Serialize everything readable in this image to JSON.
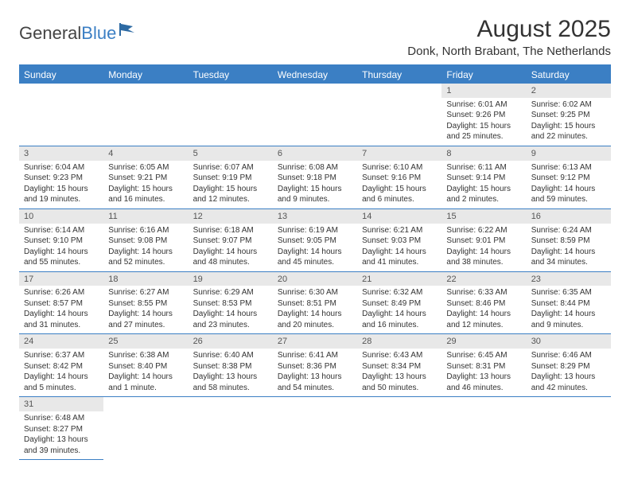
{
  "logo": {
    "part1": "General",
    "part2": "Blue"
  },
  "title": "August 2025",
  "location": "Donk, North Brabant, The Netherlands",
  "colors": {
    "header_bg": "#3b7fc4",
    "header_text": "#ffffff",
    "daynum_bg": "#e8e8e8",
    "text": "#333333",
    "border": "#3b7fc4"
  },
  "weekdays": [
    "Sunday",
    "Monday",
    "Tuesday",
    "Wednesday",
    "Thursday",
    "Friday",
    "Saturday"
  ],
  "weeks": [
    [
      null,
      null,
      null,
      null,
      null,
      {
        "n": "1",
        "sr": "Sunrise: 6:01 AM",
        "ss": "Sunset: 9:26 PM",
        "d1": "Daylight: 15 hours",
        "d2": "and 25 minutes."
      },
      {
        "n": "2",
        "sr": "Sunrise: 6:02 AM",
        "ss": "Sunset: 9:25 PM",
        "d1": "Daylight: 15 hours",
        "d2": "and 22 minutes."
      }
    ],
    [
      {
        "n": "3",
        "sr": "Sunrise: 6:04 AM",
        "ss": "Sunset: 9:23 PM",
        "d1": "Daylight: 15 hours",
        "d2": "and 19 minutes."
      },
      {
        "n": "4",
        "sr": "Sunrise: 6:05 AM",
        "ss": "Sunset: 9:21 PM",
        "d1": "Daylight: 15 hours",
        "d2": "and 16 minutes."
      },
      {
        "n": "5",
        "sr": "Sunrise: 6:07 AM",
        "ss": "Sunset: 9:19 PM",
        "d1": "Daylight: 15 hours",
        "d2": "and 12 minutes."
      },
      {
        "n": "6",
        "sr": "Sunrise: 6:08 AM",
        "ss": "Sunset: 9:18 PM",
        "d1": "Daylight: 15 hours",
        "d2": "and 9 minutes."
      },
      {
        "n": "7",
        "sr": "Sunrise: 6:10 AM",
        "ss": "Sunset: 9:16 PM",
        "d1": "Daylight: 15 hours",
        "d2": "and 6 minutes."
      },
      {
        "n": "8",
        "sr": "Sunrise: 6:11 AM",
        "ss": "Sunset: 9:14 PM",
        "d1": "Daylight: 15 hours",
        "d2": "and 2 minutes."
      },
      {
        "n": "9",
        "sr": "Sunrise: 6:13 AM",
        "ss": "Sunset: 9:12 PM",
        "d1": "Daylight: 14 hours",
        "d2": "and 59 minutes."
      }
    ],
    [
      {
        "n": "10",
        "sr": "Sunrise: 6:14 AM",
        "ss": "Sunset: 9:10 PM",
        "d1": "Daylight: 14 hours",
        "d2": "and 55 minutes."
      },
      {
        "n": "11",
        "sr": "Sunrise: 6:16 AM",
        "ss": "Sunset: 9:08 PM",
        "d1": "Daylight: 14 hours",
        "d2": "and 52 minutes."
      },
      {
        "n": "12",
        "sr": "Sunrise: 6:18 AM",
        "ss": "Sunset: 9:07 PM",
        "d1": "Daylight: 14 hours",
        "d2": "and 48 minutes."
      },
      {
        "n": "13",
        "sr": "Sunrise: 6:19 AM",
        "ss": "Sunset: 9:05 PM",
        "d1": "Daylight: 14 hours",
        "d2": "and 45 minutes."
      },
      {
        "n": "14",
        "sr": "Sunrise: 6:21 AM",
        "ss": "Sunset: 9:03 PM",
        "d1": "Daylight: 14 hours",
        "d2": "and 41 minutes."
      },
      {
        "n": "15",
        "sr": "Sunrise: 6:22 AM",
        "ss": "Sunset: 9:01 PM",
        "d1": "Daylight: 14 hours",
        "d2": "and 38 minutes."
      },
      {
        "n": "16",
        "sr": "Sunrise: 6:24 AM",
        "ss": "Sunset: 8:59 PM",
        "d1": "Daylight: 14 hours",
        "d2": "and 34 minutes."
      }
    ],
    [
      {
        "n": "17",
        "sr": "Sunrise: 6:26 AM",
        "ss": "Sunset: 8:57 PM",
        "d1": "Daylight: 14 hours",
        "d2": "and 31 minutes."
      },
      {
        "n": "18",
        "sr": "Sunrise: 6:27 AM",
        "ss": "Sunset: 8:55 PM",
        "d1": "Daylight: 14 hours",
        "d2": "and 27 minutes."
      },
      {
        "n": "19",
        "sr": "Sunrise: 6:29 AM",
        "ss": "Sunset: 8:53 PM",
        "d1": "Daylight: 14 hours",
        "d2": "and 23 minutes."
      },
      {
        "n": "20",
        "sr": "Sunrise: 6:30 AM",
        "ss": "Sunset: 8:51 PM",
        "d1": "Daylight: 14 hours",
        "d2": "and 20 minutes."
      },
      {
        "n": "21",
        "sr": "Sunrise: 6:32 AM",
        "ss": "Sunset: 8:49 PM",
        "d1": "Daylight: 14 hours",
        "d2": "and 16 minutes."
      },
      {
        "n": "22",
        "sr": "Sunrise: 6:33 AM",
        "ss": "Sunset: 8:46 PM",
        "d1": "Daylight: 14 hours",
        "d2": "and 12 minutes."
      },
      {
        "n": "23",
        "sr": "Sunrise: 6:35 AM",
        "ss": "Sunset: 8:44 PM",
        "d1": "Daylight: 14 hours",
        "d2": "and 9 minutes."
      }
    ],
    [
      {
        "n": "24",
        "sr": "Sunrise: 6:37 AM",
        "ss": "Sunset: 8:42 PM",
        "d1": "Daylight: 14 hours",
        "d2": "and 5 minutes."
      },
      {
        "n": "25",
        "sr": "Sunrise: 6:38 AM",
        "ss": "Sunset: 8:40 PM",
        "d1": "Daylight: 14 hours",
        "d2": "and 1 minute."
      },
      {
        "n": "26",
        "sr": "Sunrise: 6:40 AM",
        "ss": "Sunset: 8:38 PM",
        "d1": "Daylight: 13 hours",
        "d2": "and 58 minutes."
      },
      {
        "n": "27",
        "sr": "Sunrise: 6:41 AM",
        "ss": "Sunset: 8:36 PM",
        "d1": "Daylight: 13 hours",
        "d2": "and 54 minutes."
      },
      {
        "n": "28",
        "sr": "Sunrise: 6:43 AM",
        "ss": "Sunset: 8:34 PM",
        "d1": "Daylight: 13 hours",
        "d2": "and 50 minutes."
      },
      {
        "n": "29",
        "sr": "Sunrise: 6:45 AM",
        "ss": "Sunset: 8:31 PM",
        "d1": "Daylight: 13 hours",
        "d2": "and 46 minutes."
      },
      {
        "n": "30",
        "sr": "Sunrise: 6:46 AM",
        "ss": "Sunset: 8:29 PM",
        "d1": "Daylight: 13 hours",
        "d2": "and 42 minutes."
      }
    ],
    [
      {
        "n": "31",
        "sr": "Sunrise: 6:48 AM",
        "ss": "Sunset: 8:27 PM",
        "d1": "Daylight: 13 hours",
        "d2": "and 39 minutes."
      },
      null,
      null,
      null,
      null,
      null,
      null
    ]
  ]
}
